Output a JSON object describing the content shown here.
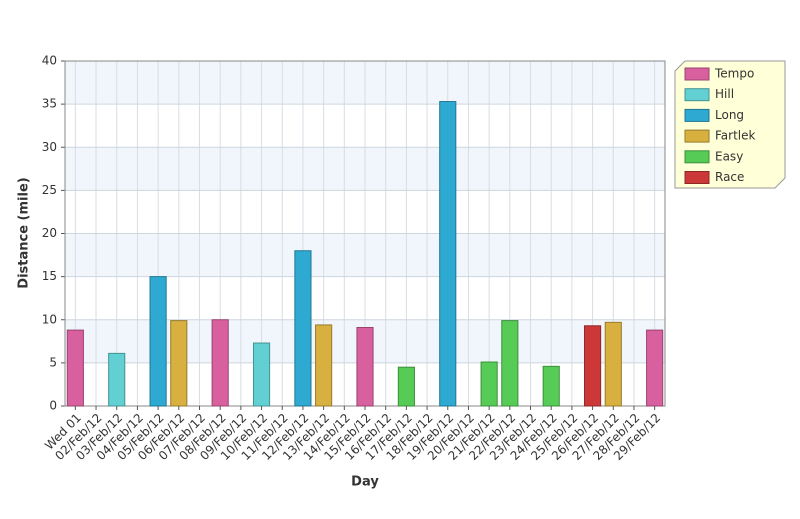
{
  "chart_data": {
    "type": "bar",
    "stacked": true,
    "x_label": "Day",
    "y_label": "Distance (mile)",
    "categories": [
      "Wed 01",
      "02/Feb/12",
      "03/Feb/12",
      "04/Feb/12",
      "05/Feb/12",
      "06/Feb/12",
      "07/Feb/12",
      "08/Feb/12",
      "09/Feb/12",
      "10/Feb/12",
      "11/Feb/12",
      "12/Feb/12",
      "13/Feb/12",
      "14/Feb/12",
      "15/Feb/12",
      "16/Feb/12",
      "17/Feb/12",
      "18/Feb/12",
      "19/Feb/12",
      "20/Feb/12",
      "21/Feb/12",
      "22/Feb/12",
      "23/Feb/12",
      "24/Feb/12",
      "25/Feb/12",
      "26/Feb/12",
      "27/Feb/12",
      "28/Feb/12",
      "29/Feb/12"
    ],
    "series": [
      {
        "name": "Tempo",
        "color": "#d9609f",
        "values": [
          8.8,
          null,
          null,
          null,
          null,
          null,
          null,
          10,
          null,
          null,
          null,
          null,
          null,
          null,
          9.1,
          null,
          null,
          null,
          null,
          null,
          null,
          null,
          null,
          null,
          null,
          null,
          null,
          null,
          8.8
        ]
      },
      {
        "name": "Hill",
        "color": "#62d0d2",
        "values": [
          null,
          null,
          6.1,
          null,
          null,
          null,
          null,
          null,
          null,
          7.3,
          null,
          null,
          null,
          null,
          null,
          null,
          null,
          null,
          null,
          null,
          null,
          null,
          null,
          null,
          null,
          null,
          null,
          null,
          null
        ]
      },
      {
        "name": "Long",
        "color": "#2eaad2",
        "values": [
          null,
          null,
          null,
          null,
          15,
          null,
          null,
          null,
          null,
          null,
          null,
          18,
          null,
          null,
          null,
          null,
          null,
          null,
          35.3,
          null,
          null,
          null,
          null,
          null,
          null,
          null,
          null,
          null,
          null
        ]
      },
      {
        "name": "Fartlek",
        "color": "#d8b040",
        "values": [
          null,
          null,
          null,
          null,
          null,
          9.9,
          null,
          null,
          null,
          null,
          null,
          null,
          9.4,
          null,
          null,
          null,
          null,
          null,
          null,
          null,
          null,
          null,
          null,
          null,
          null,
          null,
          9.7,
          null,
          null
        ]
      },
      {
        "name": "Easy",
        "color": "#56cc56",
        "values": [
          null,
          null,
          null,
          null,
          null,
          null,
          null,
          null,
          null,
          null,
          null,
          null,
          null,
          null,
          null,
          null,
          4.5,
          null,
          null,
          null,
          5.1,
          9.9,
          null,
          4.6,
          null,
          null,
          null,
          null,
          null
        ]
      },
      {
        "name": "Race",
        "color": "#cc3838",
        "values": [
          null,
          null,
          null,
          null,
          null,
          null,
          null,
          null,
          null,
          null,
          null,
          null,
          null,
          null,
          null,
          null,
          null,
          null,
          null,
          null,
          null,
          null,
          null,
          null,
          null,
          9.3,
          null,
          null,
          null
        ]
      }
    ],
    "ylim": [
      0,
      40
    ],
    "yticks": [
      0,
      5,
      10,
      15,
      20,
      25,
      30,
      35,
      40
    ],
    "grid": true,
    "legend": "right"
  }
}
